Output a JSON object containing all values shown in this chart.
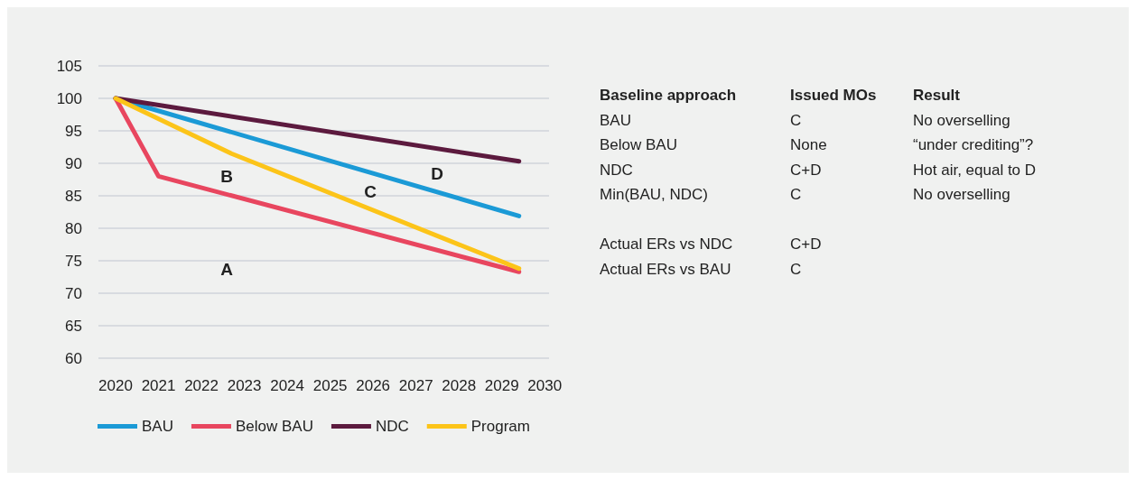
{
  "chart_data": [
    {
      "type": "line",
      "xlim": [
        2019.6,
        2030.1
      ],
      "xticks": [
        2020,
        2021,
        2022,
        2023,
        2024,
        2025,
        2026,
        2027,
        2028,
        2029,
        2030
      ],
      "ylim": [
        60,
        105
      ],
      "yticks": [
        60,
        65,
        70,
        75,
        80,
        85,
        90,
        95,
        100,
        105
      ],
      "grid": "y",
      "legend": "bottom left",
      "marker": "none",
      "line_style": "solid",
      "series": [
        {
          "name": "BAU",
          "color": "#1b9ad6",
          "x": [
            2020,
            2029.4
          ],
          "values": [
            100,
            81.9
          ]
        },
        {
          "name": "Below BAU",
          "color": "#e8465f",
          "x": [
            2020,
            2021,
            2029.4
          ],
          "values": [
            100,
            88,
            73.3
          ]
        },
        {
          "name": "NDC",
          "color": "#5c1a3e",
          "x": [
            2020,
            2029.4
          ],
          "values": [
            100,
            90.3
          ]
        },
        {
          "name": "Program",
          "color": "#fcc419",
          "x": [
            2020,
            2022.7,
            2029.4
          ],
          "values": [
            100,
            91.5,
            73.8
          ]
        }
      ],
      "annotations": [
        "A",
        "B",
        "C",
        "D"
      ]
    },
    {
      "type": "other",
      "annotations": [
        "Baseline approach",
        "Issued MOs",
        "Result",
        "BAU",
        "C",
        "No overselling",
        "Below BAU",
        "None",
        "“under crediting”?",
        "NDC",
        "C+D",
        "Hot air, equal to D",
        "Min(BAU, NDC)",
        "C",
        "No overselling",
        "Actual ERs vs NDC",
        "C+D",
        "Actual ERs vs BAU",
        "C"
      ]
    }
  ]
}
